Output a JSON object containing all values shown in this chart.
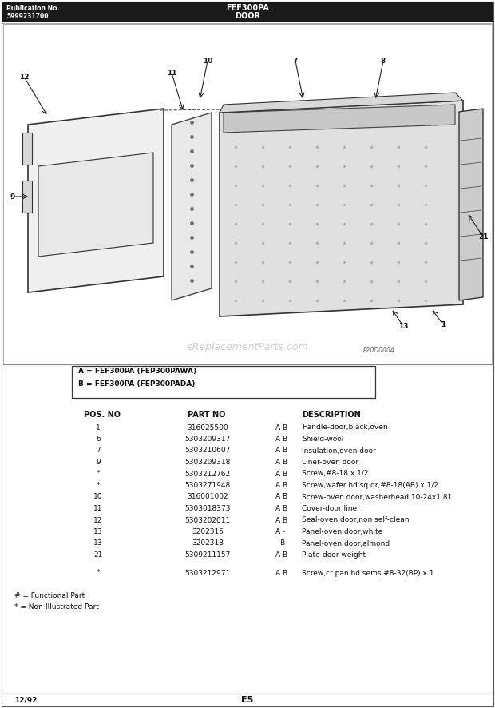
{
  "pub_no_label": "Publication No.",
  "pub_no": "5999231700",
  "model": "FEF300PA",
  "section": "DOOR",
  "watermark": "eReplacementParts.com",
  "variant_lines": [
    "A = FEF300PA (FEP300PAWA)",
    "B = FEF300PA (FEP300PADA)"
  ],
  "col_headers": [
    "POS. NO",
    "PART NO",
    "",
    "DESCRIPTION"
  ],
  "parts": [
    [
      "1",
      "316025500",
      "A B",
      "Handle-door,black,oven"
    ],
    [
      "6",
      "5303209317",
      "A B",
      "Shield-wool"
    ],
    [
      "7",
      "5303210607",
      "A B",
      "Insulation,oven door"
    ],
    [
      "9",
      "5303209318",
      "A B",
      "Liner-oven door"
    ],
    [
      "*",
      "5303212762",
      "A B",
      "Screw,#8-18 x 1/2"
    ],
    [
      "*",
      "5303271948",
      "A B",
      "Screw,wafer hd sq dr,#8-18(AB) x 1/2"
    ],
    [
      "10",
      "316001002",
      "A B",
      "Screw-oven door,washerhead,10-24x1.81"
    ],
    [
      "11",
      "5303018373",
      "A B",
      "Cover-door liner"
    ],
    [
      "12",
      "5303202011",
      "A B",
      "Seal-oven door,non self-clean"
    ],
    [
      "13",
      "3202315",
      "A -",
      "Panel-oven door,white"
    ],
    [
      "13",
      "3202318",
      "- B",
      "Panel-oven door,almond"
    ],
    [
      "21",
      "5309211157",
      "A B",
      "Plate-door weight"
    ],
    [
      "",
      "",
      "",
      ""
    ],
    [
      "*",
      "5303212971",
      "A B",
      "Screw,cr pan hd sems,#8-32(BP) x 1"
    ]
  ],
  "footnotes": [
    "# = Functional Part",
    "* = Non-Illustrated Part"
  ],
  "page_left": "12/92",
  "page_right": "E5",
  "img_label": "P20D0004"
}
